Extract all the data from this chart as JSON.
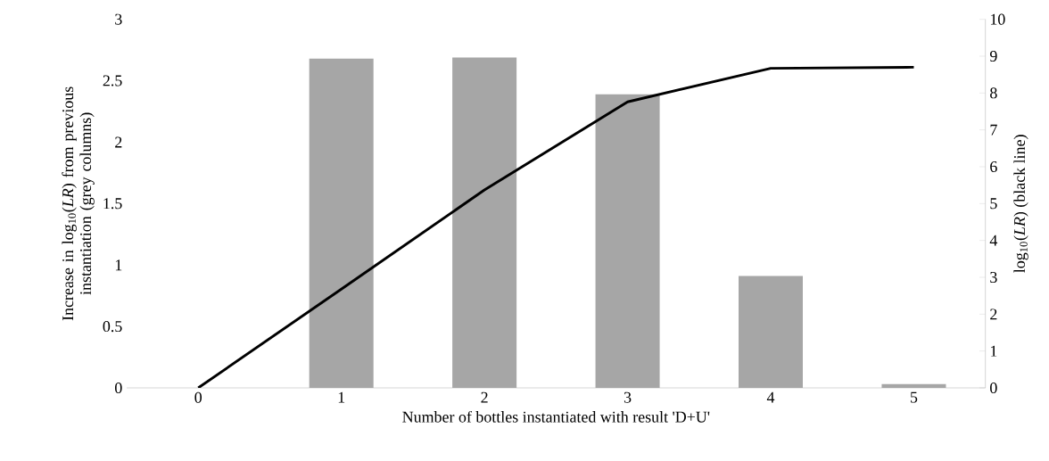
{
  "chart_data": {
    "type": "bar",
    "xlabel": "Number of bottles instantiated with result 'D+U'",
    "ylabel": "Increase in log$_{10}$(*LR*) from previous instantiation (grey columns)",
    "y2label": "log$_{10}$(*LR*)  (black line)",
    "categories": [
      "0",
      "1",
      "2",
      "3",
      "4",
      "5"
    ],
    "series": [
      {
        "color": "#a6a6a6",
        "values": [
          0,
          2.68,
          2.69,
          2.39,
          0.91,
          0.03
        ]
      },
      {
        "type": "line",
        "axis": "y2",
        "color": "#000000",
        "values": [
          0,
          2.68,
          5.37,
          7.76,
          8.67,
          8.7
        ]
      }
    ],
    "ylim": [
      0,
      3
    ],
    "yticks": [
      0,
      0.5,
      1,
      1.5,
      2,
      2.5,
      3
    ],
    "y2lim": [
      0,
      10
    ],
    "y2ticks": [
      0,
      1,
      2,
      3,
      4,
      5,
      6,
      7,
      8,
      9,
      10
    ],
    "grid": false,
    "legend": false,
    "marker": "none",
    "line_style": "solid"
  }
}
